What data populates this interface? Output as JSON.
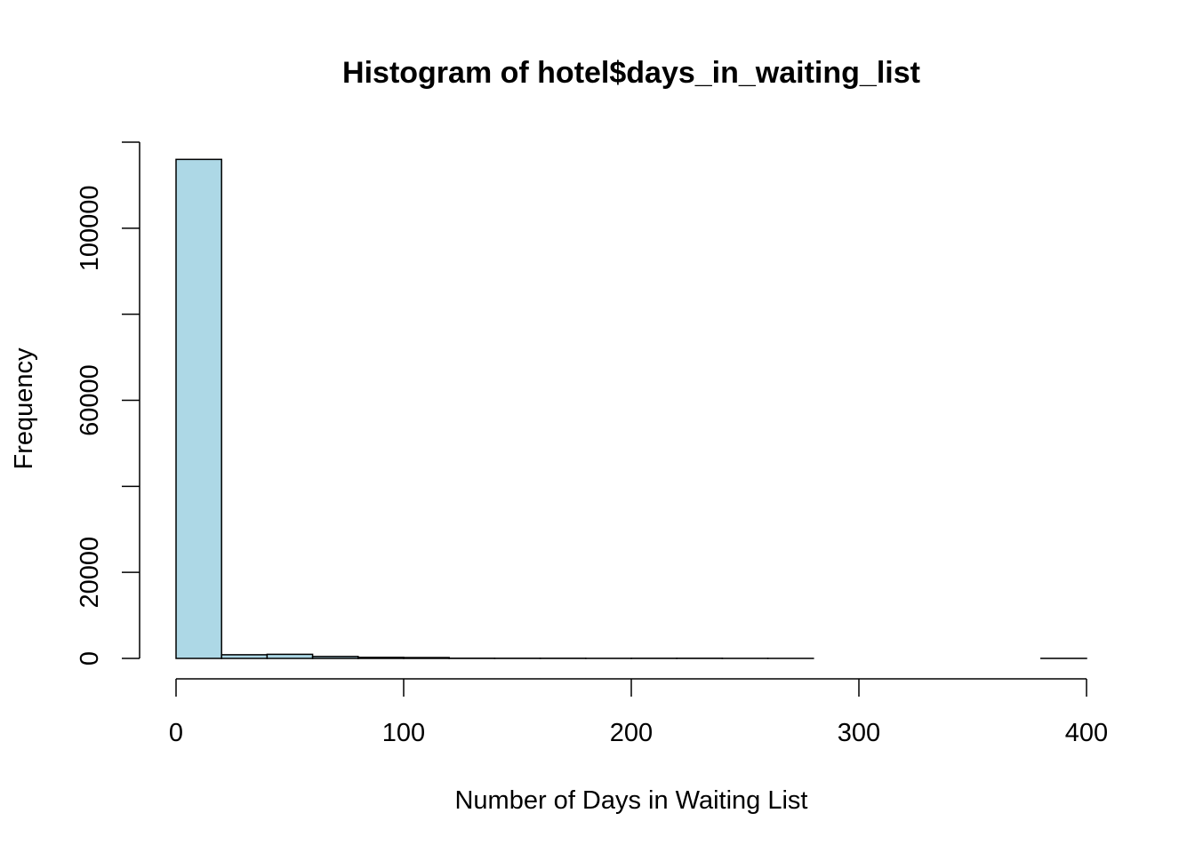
{
  "chart_data": {
    "type": "bar",
    "title": "Histogram of hotel$days_in_waiting_list",
    "xlabel": "Number of Days in Waiting List",
    "ylabel": "Frequency",
    "bar_color": "#add8e6",
    "border_color": "#000000",
    "bins": [
      {
        "x0": 0,
        "x1": 20,
        "count": 116000
      },
      {
        "x0": 20,
        "x1": 40,
        "count": 850
      },
      {
        "x0": 40,
        "x1": 60,
        "count": 950
      },
      {
        "x0": 60,
        "x1": 80,
        "count": 450
      },
      {
        "x0": 80,
        "x1": 100,
        "count": 250
      },
      {
        "x0": 100,
        "x1": 120,
        "count": 200
      },
      {
        "x0": 120,
        "x1": 140,
        "count": 40
      },
      {
        "x0": 140,
        "x1": 160,
        "count": 30
      },
      {
        "x0": 160,
        "x1": 180,
        "count": 30
      },
      {
        "x0": 180,
        "x1": 200,
        "count": 15
      },
      {
        "x0": 200,
        "x1": 220,
        "count": 25
      },
      {
        "x0": 220,
        "x1": 240,
        "count": 30
      },
      {
        "x0": 240,
        "x1": 260,
        "count": 10
      },
      {
        "x0": 260,
        "x1": 280,
        "count": 5
      },
      {
        "x0": 280,
        "x1": 300,
        "count": 0
      },
      {
        "x0": 300,
        "x1": 320,
        "count": 0
      },
      {
        "x0": 320,
        "x1": 340,
        "count": 0
      },
      {
        "x0": 340,
        "x1": 360,
        "count": 0
      },
      {
        "x0": 360,
        "x1": 380,
        "count": 0
      },
      {
        "x0": 380,
        "x1": 400,
        "count": 10
      }
    ],
    "xlim": [
      0,
      400
    ],
    "ylim": [
      0,
      120000
    ],
    "x_ticks": [
      0,
      100,
      200,
      300,
      400
    ],
    "y_ticks": [
      0,
      20000,
      40000,
      60000,
      80000,
      100000,
      120000
    ],
    "y_tick_labels": [
      {
        "value": 0,
        "label": "0"
      },
      {
        "value": 20000,
        "label": "20000"
      },
      {
        "value": 60000,
        "label": "60000"
      },
      {
        "value": 100000,
        "label": "100000"
      }
    ],
    "grid": false,
    "legend": "none"
  }
}
